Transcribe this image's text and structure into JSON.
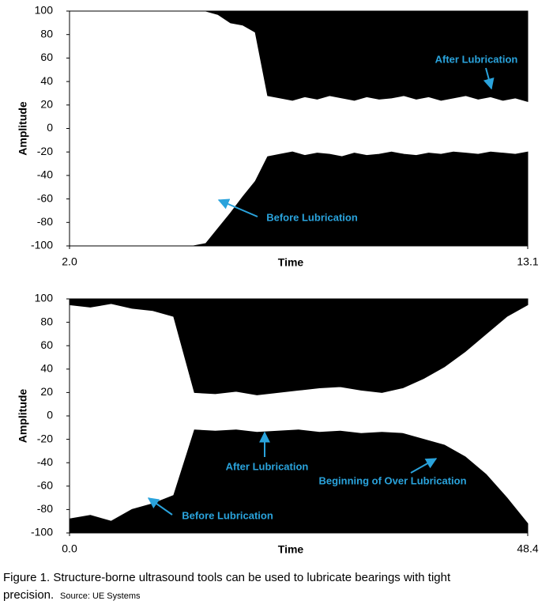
{
  "chart_data": [
    {
      "type": "band",
      "xlabel": "Time",
      "ylabel": "Amplitude",
      "x": [
        2.0,
        2.3,
        2.6,
        2.9,
        3.2,
        3.5,
        3.8,
        4.1,
        4.4,
        4.7,
        5.0,
        5.3,
        5.6,
        5.9,
        6.2,
        6.5,
        6.8,
        7.1,
        7.4,
        7.7,
        8.0,
        8.3,
        8.6,
        8.9,
        9.2,
        9.5,
        9.8,
        10.1,
        10.4,
        10.7,
        11.0,
        11.3,
        11.6,
        11.9,
        12.2,
        12.5,
        12.8,
        13.1
      ],
      "series": [
        {
          "color": "#000000",
          "values": [
            100,
            100,
            100,
            100,
            100,
            100,
            100,
            100,
            100,
            100,
            100,
            100,
            97,
            90,
            88,
            82,
            28,
            26,
            24,
            27,
            25,
            28,
            26,
            24,
            27,
            25,
            26,
            28,
            25,
            27,
            24,
            26,
            28,
            25,
            27,
            24,
            26,
            23
          ]
        },
        {
          "color": "#000000",
          "values": [
            -100,
            -100,
            -100,
            -100,
            -100,
            -100,
            -100,
            -100,
            -100,
            -100,
            -100,
            -98,
            -85,
            -72,
            -58,
            -45,
            -24,
            -22,
            -20,
            -23,
            -21,
            -22,
            -24,
            -21,
            -23,
            -22,
            -20,
            -22,
            -23,
            -21,
            -22,
            -20,
            -21,
            -22,
            -20,
            -21,
            -22,
            -20
          ]
        }
      ],
      "xlim": [
        2.0,
        13.1
      ],
      "xticks": [
        {
          "value": 2.0,
          "label": "2.0"
        },
        13.1
      ],
      "ylim": [
        -100,
        100
      ],
      "yticks": [
        -100,
        -80,
        -60,
        -40,
        -20,
        0,
        20,
        40,
        60,
        80,
        100
      ],
      "annotations": [
        {
          "text": "After Lubrication"
        },
        {
          "text": "Before Lubrication"
        }
      ]
    },
    {
      "type": "band",
      "xlabel": "Time",
      "ylabel": "Amplitude",
      "x": [
        0,
        2.2,
        4.4,
        6.6,
        8.8,
        11,
        13.2,
        15.4,
        17.6,
        19.8,
        22,
        24.2,
        26.4,
        28.6,
        30.8,
        33,
        35.2,
        37.4,
        39.6,
        41.8,
        44,
        46.2,
        48.4
      ],
      "series": [
        {
          "color": "#000000",
          "values": [
            95,
            93,
            96,
            92,
            90,
            85,
            20,
            19,
            21,
            18,
            20,
            22,
            24,
            25,
            22,
            20,
            24,
            32,
            42,
            55,
            70,
            85,
            95
          ]
        },
        {
          "color": "#000000",
          "values": [
            -88,
            -85,
            -90,
            -80,
            -75,
            -68,
            -12,
            -13,
            -12,
            -14,
            -13,
            -12,
            -14,
            -13,
            -15,
            -14,
            -15,
            -20,
            -25,
            -35,
            -50,
            -70,
            -92
          ]
        }
      ],
      "xlim": [
        0,
        48.4
      ],
      "xticks": [
        {
          "value": 0,
          "label": "0.0"
        },
        48.4
      ],
      "ylim": [
        -100,
        100
      ],
      "yticks": [
        -100,
        -80,
        -60,
        -40,
        -20,
        0,
        20,
        40,
        60,
        80,
        100
      ],
      "annotations": [
        {
          "text": "After Lubrication"
        },
        {
          "text": "Beginning of Over Lubrication"
        },
        {
          "text": "Before Lubrication"
        }
      ]
    }
  ],
  "caption": "Figure 1. Structure-borne ultrasound tools can be used to lubricate bearings with tight",
  "caption_cont": "precision.",
  "source": "Source: UE Systems"
}
